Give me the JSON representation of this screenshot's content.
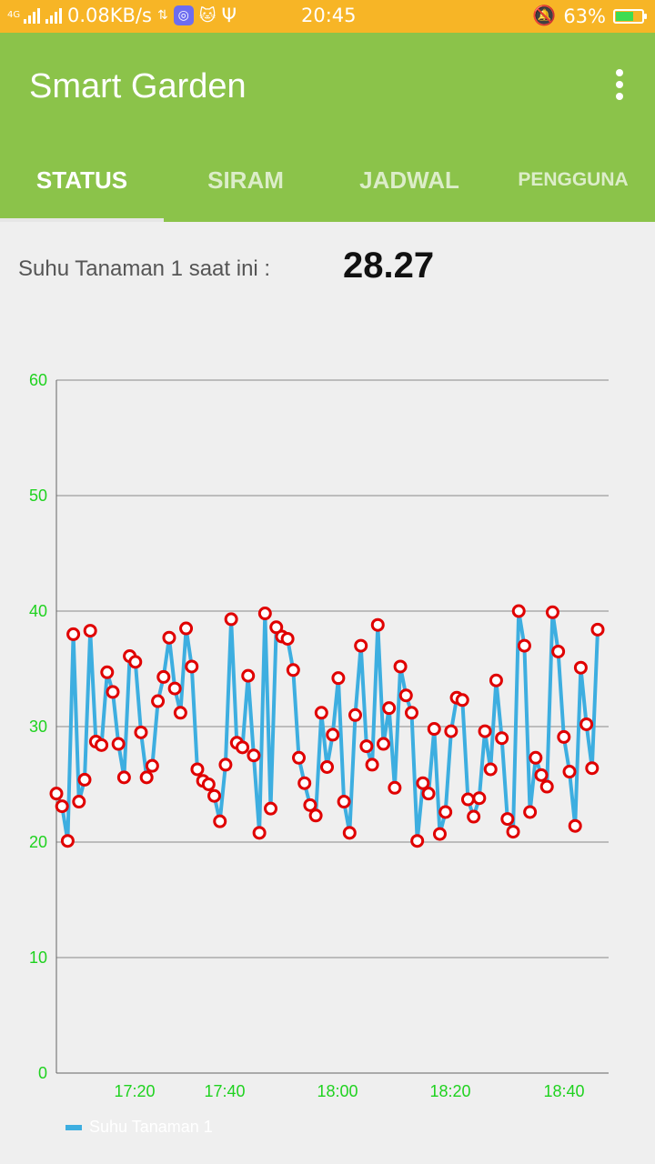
{
  "status_bar": {
    "network_type": "4G",
    "speed": "0.08KB/s",
    "time": "20:45",
    "battery": "63%",
    "battery_level": 0.63,
    "icons": [
      "signal-icon",
      "data-icon",
      "app-icon",
      "cat-icon",
      "usb-icon",
      "bell-muted-icon",
      "battery-icon"
    ]
  },
  "app": {
    "title": "Smart Garden"
  },
  "tabs": [
    {
      "label": "STATUS",
      "active": true
    },
    {
      "label": "SIRAM",
      "active": false
    },
    {
      "label": "JADWAL",
      "active": false
    },
    {
      "label": "PENGGUNA",
      "active": false
    }
  ],
  "reading": {
    "label": "Suhu Tanaman 1 saat ini :",
    "value": "28.27"
  },
  "colors": {
    "appbar": "#8bc34a",
    "statusbar": "#f7b526",
    "line": "#3daee0",
    "point": "#e00000",
    "axis_text": "#1fd21f"
  },
  "chart_data": {
    "type": "line",
    "ylim": [
      0,
      60
    ],
    "yticks": [
      0,
      10,
      20,
      30,
      40,
      50,
      60
    ],
    "xticks": [
      "17:20",
      "17:40",
      "18:00",
      "18:20",
      "18:40"
    ],
    "grid": true,
    "legend": "bottom-left",
    "series": [
      {
        "name": "Suhu Tanaman 1",
        "values": [
          24.2,
          23.1,
          20.1,
          38.0,
          23.5,
          25.4,
          38.3,
          28.7,
          28.4,
          34.7,
          33.0,
          28.5,
          25.6,
          36.1,
          35.6,
          29.5,
          25.6,
          26.6,
          32.2,
          34.3,
          37.7,
          33.3,
          31.2,
          38.5,
          35.2,
          26.3,
          25.3,
          25.0,
          24.0,
          21.8,
          26.7,
          39.3,
          28.6,
          28.2,
          34.4,
          27.5,
          20.8,
          39.8,
          22.9,
          38.6,
          37.8,
          37.6,
          34.9,
          27.3,
          25.1,
          23.2,
          22.3,
          31.2,
          26.5,
          29.3,
          34.2,
          23.5,
          20.8,
          31.0,
          37.0,
          28.3,
          26.7,
          38.8,
          28.5,
          31.6,
          24.7,
          35.2,
          32.7,
          31.2,
          20.1,
          25.1,
          24.2,
          29.8,
          20.7,
          22.6,
          29.6,
          32.5,
          32.3,
          23.7,
          22.2,
          23.8,
          29.6,
          26.3,
          34.0,
          29.0,
          22.0,
          20.9,
          40.0,
          37.0,
          22.6,
          27.3,
          25.8,
          24.8,
          39.9,
          36.5,
          29.1,
          26.1,
          21.4,
          35.1,
          30.2,
          26.4,
          38.4
        ]
      }
    ]
  }
}
